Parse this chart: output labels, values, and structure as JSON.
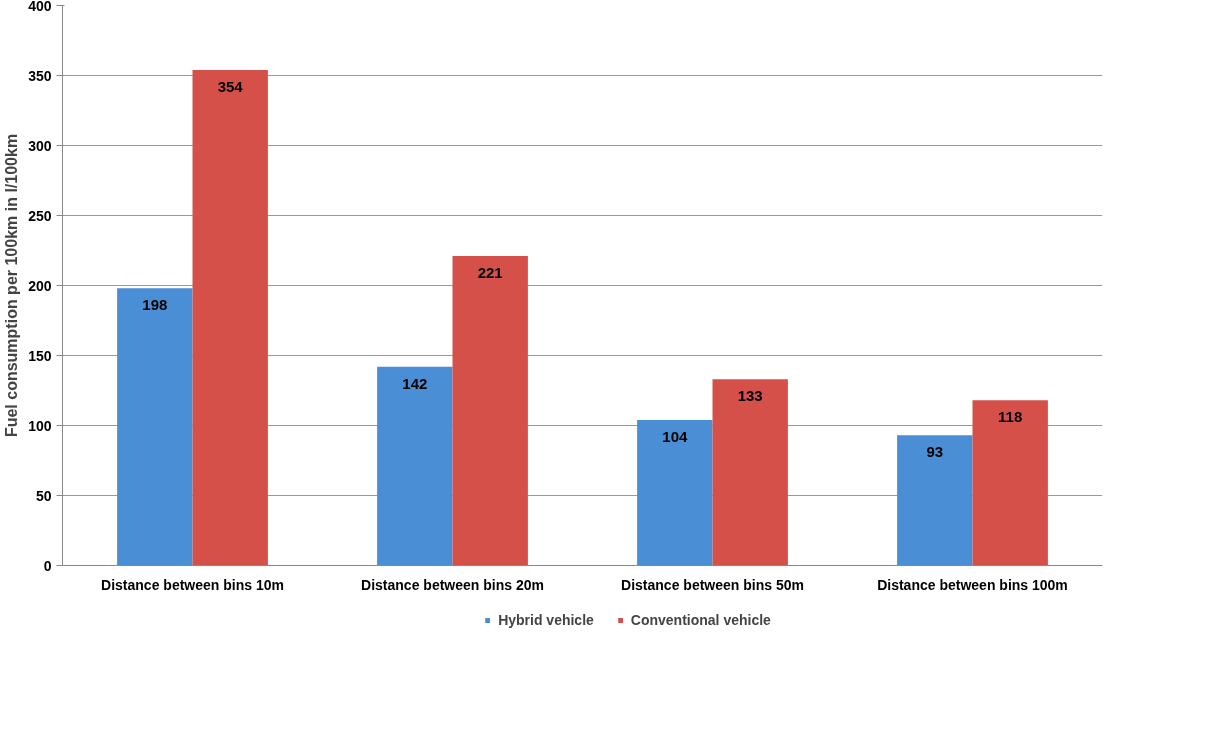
{
  "chart_data": {
    "type": "bar",
    "ylabel": "Fuel consumption per 100km in l/100km",
    "categories": [
      "Distance between bins 10m",
      "Distance between bins 20m",
      "Distance between bins 50m",
      "Distance between bins 100m"
    ],
    "series": [
      {
        "name": "Hybrid vehicle",
        "color": "#4a8ed6",
        "values": [
          198,
          142,
          104,
          93
        ]
      },
      {
        "name": "Conventional vehicle",
        "color": "#d6504a",
        "values": [
          354,
          221,
          133,
          118
        ]
      }
    ],
    "ylim": [
      0,
      400
    ],
    "yticks": [
      0,
      50,
      100,
      150,
      200,
      250,
      300,
      350,
      400
    ],
    "grid": "y",
    "legend": "bottom",
    "data_labels": true
  }
}
